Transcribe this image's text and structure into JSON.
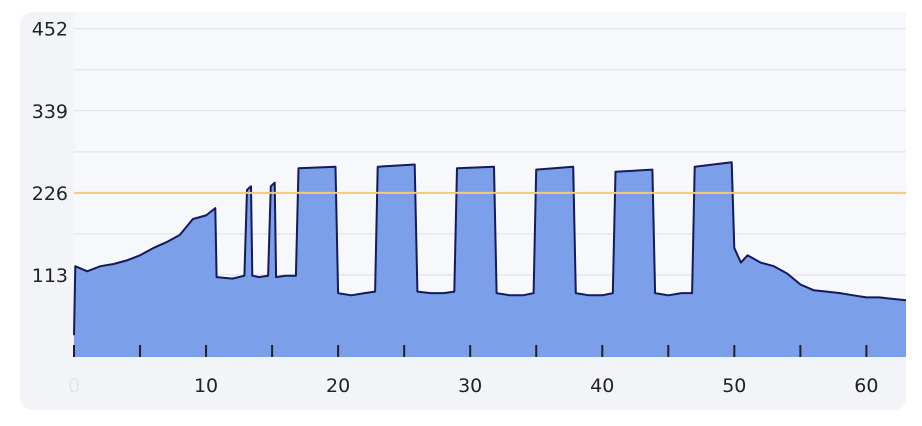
{
  "chart_data": {
    "type": "area",
    "title": "",
    "xlabel": "",
    "ylabel": "",
    "xlim": [
      0,
      63
    ],
    "ylim": [
      0,
      475
    ],
    "x_ticks": [
      0,
      10,
      20,
      30,
      40,
      50,
      60
    ],
    "x_tick_labels": [
      "0",
      "10",
      "20",
      "30",
      "40",
      "50",
      "60"
    ],
    "y_ticks": [
      113,
      226,
      339,
      452
    ],
    "y_tick_labels": [
      "113",
      "226",
      "339",
      "452"
    ],
    "grid": {
      "horizontal": true,
      "vertical": false
    },
    "reference_line": {
      "y": 226,
      "color": "#f5c97a"
    },
    "colors": {
      "fill": "#7b9fe8",
      "line": "#141a5a",
      "plot_background": "#f7f8fc",
      "card_background": "#f3f4f8",
      "grid": "#dcdee6"
    },
    "series": [
      {
        "x": [
          0,
          0.1,
          1,
          2,
          3,
          4,
          5,
          6,
          7,
          8,
          9,
          10,
          10.7,
          10.8,
          12,
          12.9,
          13.1,
          13.4,
          13.5,
          14,
          14.7,
          14.9,
          15.2,
          15.3,
          16,
          16.8,
          17,
          19.8,
          20,
          21,
          22,
          22.8,
          23,
          25.8,
          26,
          27,
          28,
          28.8,
          29,
          31.8,
          32,
          33,
          34,
          34.8,
          35,
          37.8,
          38,
          39,
          40,
          40.8,
          41,
          43.8,
          44,
          45,
          46,
          46.8,
          47,
          49.8,
          50,
          50.5,
          51,
          52,
          53,
          54,
          55,
          56,
          57,
          58,
          59,
          60,
          61,
          62,
          63
        ],
        "values": [
          30,
          125,
          118,
          125,
          128,
          133,
          140,
          150,
          158,
          168,
          190,
          195,
          205,
          110,
          108,
          112,
          230,
          235,
          112,
          110,
          112,
          235,
          240,
          110,
          112,
          112,
          260,
          262,
          88,
          85,
          88,
          90,
          262,
          265,
          90,
          88,
          88,
          90,
          260,
          262,
          88,
          85,
          85,
          88,
          258,
          262,
          88,
          85,
          85,
          88,
          255,
          258,
          88,
          85,
          88,
          88,
          262,
          268,
          150,
          130,
          140,
          130,
          125,
          115,
          100,
          92,
          90,
          88,
          85,
          82,
          82,
          80,
          78
        ]
      }
    ]
  }
}
